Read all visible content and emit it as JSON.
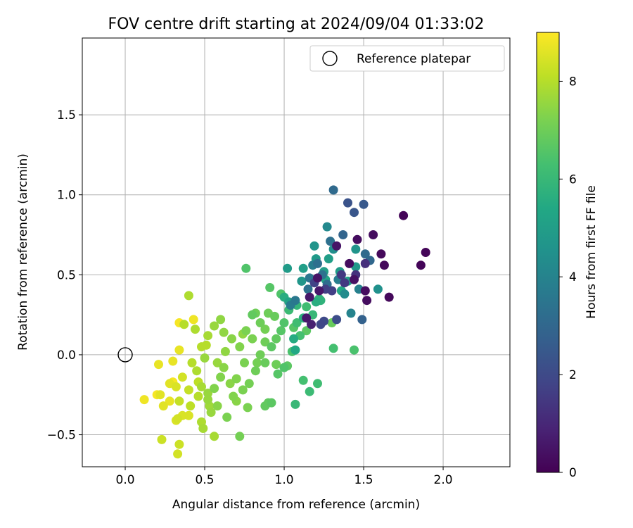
{
  "chart_data": {
    "type": "scatter",
    "title": "FOV centre drift starting at 2024/09/04 01:33:02",
    "xlabel": "Angular distance from reference (arcmin)",
    "ylabel": "Rotation from reference (arcmin)",
    "xlim": [
      -0.27,
      2.42
    ],
    "ylim": [
      -0.7,
      1.98
    ],
    "x_ticks": [
      0.0,
      0.5,
      1.0,
      1.5,
      2.0
    ],
    "x_tick_labels": [
      "0.0",
      "0.5",
      "1.0",
      "1.5",
      "2.0"
    ],
    "y_ticks": [
      -0.5,
      0.0,
      0.5,
      1.0,
      1.5
    ],
    "y_tick_labels": [
      "−0.5",
      "0.0",
      "0.5",
      "1.0",
      "1.5"
    ],
    "grid": true,
    "legend": {
      "position": "top-right",
      "entries": [
        "Reference platepar"
      ]
    },
    "reference_point": {
      "x": 0.0,
      "y": 0.0
    },
    "colorbar": {
      "label": "Hours from first FF file",
      "colormap": "viridis",
      "range": [
        0,
        9
      ],
      "ticks": [
        0,
        2,
        4,
        6,
        8
      ],
      "tick_labels": [
        "0",
        "2",
        "4",
        "6",
        "8"
      ]
    },
    "colormap_stops": [
      "#440154",
      "#482475",
      "#414487",
      "#355f8d",
      "#2a788e",
      "#21918c",
      "#22a884",
      "#44bf70",
      "#7ad151",
      "#bddf26",
      "#fde725"
    ],
    "points": [
      [
        1.75,
        0.87,
        0.1
      ],
      [
        1.89,
        0.64,
        0.1
      ],
      [
        1.86,
        0.56,
        0.1
      ],
      [
        1.66,
        0.36,
        0.2
      ],
      [
        1.61,
        0.63,
        0.2
      ],
      [
        1.63,
        0.56,
        0.2
      ],
      [
        1.56,
        0.75,
        0.3
      ],
      [
        1.51,
        0.4,
        0.3
      ],
      [
        1.52,
        0.34,
        0.3
      ],
      [
        1.46,
        0.72,
        0.3
      ],
      [
        1.41,
        0.57,
        0.3
      ],
      [
        1.44,
        0.47,
        0.4
      ],
      [
        1.33,
        0.68,
        0.5
      ],
      [
        1.21,
        0.48,
        0.5
      ],
      [
        1.22,
        0.4,
        0.6
      ],
      [
        1.16,
        0.36,
        0.6
      ],
      [
        1.14,
        0.23,
        0.6
      ],
      [
        1.17,
        0.19,
        0.8
      ],
      [
        1.51,
        0.57,
        1.2
      ],
      [
        1.45,
        0.5,
        1.3
      ],
      [
        1.38,
        0.45,
        1.5
      ],
      [
        1.36,
        0.5,
        1.5
      ],
      [
        1.3,
        0.4,
        1.7
      ],
      [
        1.26,
        0.41,
        1.7
      ],
      [
        1.19,
        0.45,
        1.8
      ],
      [
        1.23,
        0.19,
        1.9
      ],
      [
        1.25,
        0.21,
        2.0
      ],
      [
        1.33,
        0.22,
        2.1
      ],
      [
        1.4,
        0.95,
        2.3
      ],
      [
        1.44,
        0.89,
        2.4
      ],
      [
        1.5,
        0.94,
        2.5
      ],
      [
        1.49,
        0.22,
        2.8
      ],
      [
        1.37,
        0.75,
        2.9
      ],
      [
        1.54,
        0.59,
        3.0
      ],
      [
        1.31,
        1.03,
        3.1
      ],
      [
        1.51,
        0.63,
        3.1
      ],
      [
        1.27,
        0.44,
        3.2
      ],
      [
        1.21,
        0.57,
        3.3
      ],
      [
        1.29,
        0.71,
        3.3
      ],
      [
        1.24,
        0.5,
        3.4
      ],
      [
        1.15,
        0.41,
        3.4
      ],
      [
        1.16,
        0.48,
        3.5
      ],
      [
        1.07,
        0.34,
        3.6
      ],
      [
        1.04,
        0.31,
        3.7
      ],
      [
        1.18,
        0.56,
        3.8
      ],
      [
        1.34,
        0.47,
        3.8
      ],
      [
        1.47,
        0.41,
        3.9
      ],
      [
        1.42,
        0.26,
        4.0
      ],
      [
        1.27,
        0.8,
        4.2
      ],
      [
        1.38,
        0.38,
        4.3
      ],
      [
        1.31,
        0.66,
        4.4
      ],
      [
        1.59,
        0.41,
        4.5
      ],
      [
        1.19,
        0.68,
        4.6
      ],
      [
        1.45,
        0.66,
        4.6
      ],
      [
        1.11,
        0.46,
        4.7
      ],
      [
        1.2,
        0.6,
        4.8
      ],
      [
        1.45,
        0.55,
        4.8
      ],
      [
        1.02,
        0.54,
        4.9
      ],
      [
        1.12,
        0.54,
        5.0
      ],
      [
        1.4,
        0.46,
        5.1
      ],
      [
        1.03,
        0.33,
        5.2
      ],
      [
        1.26,
        0.47,
        5.3
      ],
      [
        1.07,
        0.03,
        5.4
      ],
      [
        1.06,
        0.1,
        5.5
      ],
      [
        1.0,
        0.36,
        5.6
      ],
      [
        1.12,
        0.23,
        5.7
      ],
      [
        1.23,
        0.34,
        5.8
      ],
      [
        1.08,
        0.31,
        5.9
      ],
      [
        1.07,
        -0.31,
        6.0
      ],
      [
        1.16,
        -0.23,
        6.1
      ],
      [
        1.21,
        -0.18,
        6.2
      ],
      [
        1.12,
        -0.16,
        6.3
      ],
      [
        1.31,
        0.04,
        6.3
      ],
      [
        1.44,
        0.03,
        6.4
      ],
      [
        0.98,
        0.38,
        6.5
      ],
      [
        0.76,
        0.54,
        6.5
      ],
      [
        0.91,
        0.42,
        6.6
      ],
      [
        1.06,
        0.17,
        6.6
      ],
      [
        1.14,
        0.15,
        6.7
      ],
      [
        1.02,
        -0.07,
        6.7
      ],
      [
        0.9,
        -0.3,
        6.8
      ],
      [
        0.88,
        -0.32,
        6.8
      ],
      [
        1.3,
        0.2,
        6.9
      ],
      [
        0.94,
        0.24,
        6.9
      ],
      [
        0.9,
        0.26,
        7.0
      ],
      [
        0.95,
        -0.06,
        7.0
      ],
      [
        0.82,
        0.26,
        7.0
      ],
      [
        0.88,
        0.16,
        7.1
      ],
      [
        0.72,
        -0.51,
        7.1
      ],
      [
        0.77,
        -0.33,
        7.2
      ],
      [
        0.64,
        -0.39,
        7.2
      ],
      [
        0.6,
        -0.14,
        7.3
      ],
      [
        0.56,
        -0.21,
        7.3
      ],
      [
        0.7,
        -0.29,
        7.4
      ],
      [
        0.62,
        -0.08,
        7.4
      ],
      [
        0.74,
        0.13,
        7.5
      ],
      [
        0.6,
        0.22,
        7.5
      ],
      [
        0.5,
        -0.02,
        7.6
      ],
      [
        0.52,
        -0.24,
        7.6
      ],
      [
        0.53,
        -0.32,
        7.7
      ],
      [
        0.49,
        -0.46,
        7.8
      ],
      [
        0.56,
        -0.51,
        7.8
      ],
      [
        0.4,
        0.37,
        7.9
      ],
      [
        0.44,
        0.16,
        7.9
      ],
      [
        0.51,
        0.06,
        8.0
      ],
      [
        0.37,
        0.19,
        8.0
      ],
      [
        0.41,
        -0.32,
        8.1
      ],
      [
        0.34,
        -0.29,
        8.2
      ],
      [
        0.23,
        -0.53,
        8.3
      ],
      [
        0.34,
        -0.56,
        8.3
      ],
      [
        0.33,
        -0.62,
        8.4
      ],
      [
        0.33,
        -0.4,
        8.4
      ],
      [
        0.32,
        -0.41,
        8.5
      ],
      [
        0.36,
        -0.38,
        8.5
      ],
      [
        0.4,
        -0.38,
        8.5
      ],
      [
        0.24,
        -0.32,
        8.6
      ],
      [
        0.22,
        -0.25,
        8.6
      ],
      [
        0.21,
        -0.06,
        8.7
      ],
      [
        0.3,
        -0.04,
        8.7
      ],
      [
        0.34,
        0.03,
        8.7
      ],
      [
        0.12,
        -0.28,
        8.8
      ],
      [
        0.43,
        0.22,
        8.8
      ],
      [
        0.34,
        0.2,
        8.9
      ],
      [
        0.2,
        -0.25,
        8.9
      ],
      [
        0.3,
        -0.17,
        8.9
      ],
      [
        0.95,
        0.1,
        6.8
      ],
      [
        0.85,
        0.0,
        7.0
      ],
      [
        0.92,
        0.05,
        6.7
      ],
      [
        0.8,
        0.1,
        7.2
      ],
      [
        0.98,
        0.15,
        6.6
      ],
      [
        1.0,
        0.2,
        6.5
      ],
      [
        0.88,
        -0.05,
        6.9
      ],
      [
        0.82,
        -0.1,
        7.0
      ],
      [
        0.78,
        -0.18,
        7.1
      ],
      [
        0.74,
        -0.22,
        7.2
      ],
      [
        0.68,
        -0.26,
        7.3
      ],
      [
        0.66,
        -0.18,
        7.4
      ],
      [
        0.72,
        0.05,
        7.3
      ],
      [
        0.76,
        0.15,
        7.2
      ],
      [
        0.85,
        0.2,
        7.0
      ],
      [
        0.8,
        0.25,
        6.8
      ],
      [
        0.92,
        -0.3,
        6.7
      ],
      [
        0.96,
        -0.12,
        6.6
      ],
      [
        1.0,
        -0.08,
        6.5
      ],
      [
        1.05,
        0.02,
        6.4
      ],
      [
        1.1,
        0.12,
        6.3
      ],
      [
        1.08,
        0.2,
        6.2
      ],
      [
        1.03,
        0.28,
        6.1
      ],
      [
        0.58,
        -0.32,
        7.4
      ],
      [
        0.52,
        -0.28,
        7.6
      ],
      [
        0.48,
        -0.2,
        7.8
      ],
      [
        0.45,
        -0.1,
        7.9
      ],
      [
        0.42,
        -0.05,
        8.0
      ],
      [
        0.48,
        0.05,
        8.0
      ],
      [
        0.52,
        0.12,
        7.8
      ],
      [
        0.56,
        0.18,
        7.6
      ],
      [
        0.62,
        0.14,
        7.5
      ],
      [
        0.67,
        0.1,
        7.4
      ],
      [
        0.63,
        0.02,
        7.5
      ],
      [
        0.58,
        -0.05,
        7.6
      ],
      [
        0.4,
        -0.22,
        8.2
      ],
      [
        0.36,
        -0.14,
        8.4
      ],
      [
        0.32,
        -0.2,
        8.5
      ],
      [
        0.28,
        -0.18,
        8.6
      ],
      [
        0.28,
        -0.29,
        8.7
      ],
      [
        0.46,
        -0.17,
        8.1
      ],
      [
        0.54,
        -0.36,
        7.6
      ],
      [
        0.48,
        -0.42,
        7.9
      ],
      [
        0.46,
        -0.26,
        8.0
      ],
      [
        0.7,
        -0.15,
        7.3
      ],
      [
        0.75,
        -0.05,
        7.2
      ],
      [
        0.83,
        -0.05,
        7.1
      ],
      [
        0.88,
        0.08,
        7.0
      ],
      [
        1.14,
        0.3,
        6.2
      ],
      [
        1.18,
        0.25,
        6.0
      ],
      [
        1.22,
        0.35,
        5.8
      ],
      [
        1.36,
        0.4,
        5.4
      ],
      [
        1.28,
        0.6,
        5.0
      ],
      [
        1.35,
        0.52,
        4.9
      ],
      [
        1.25,
        0.52,
        5.0
      ],
      [
        1.2,
        0.33,
        5.6
      ]
    ]
  }
}
